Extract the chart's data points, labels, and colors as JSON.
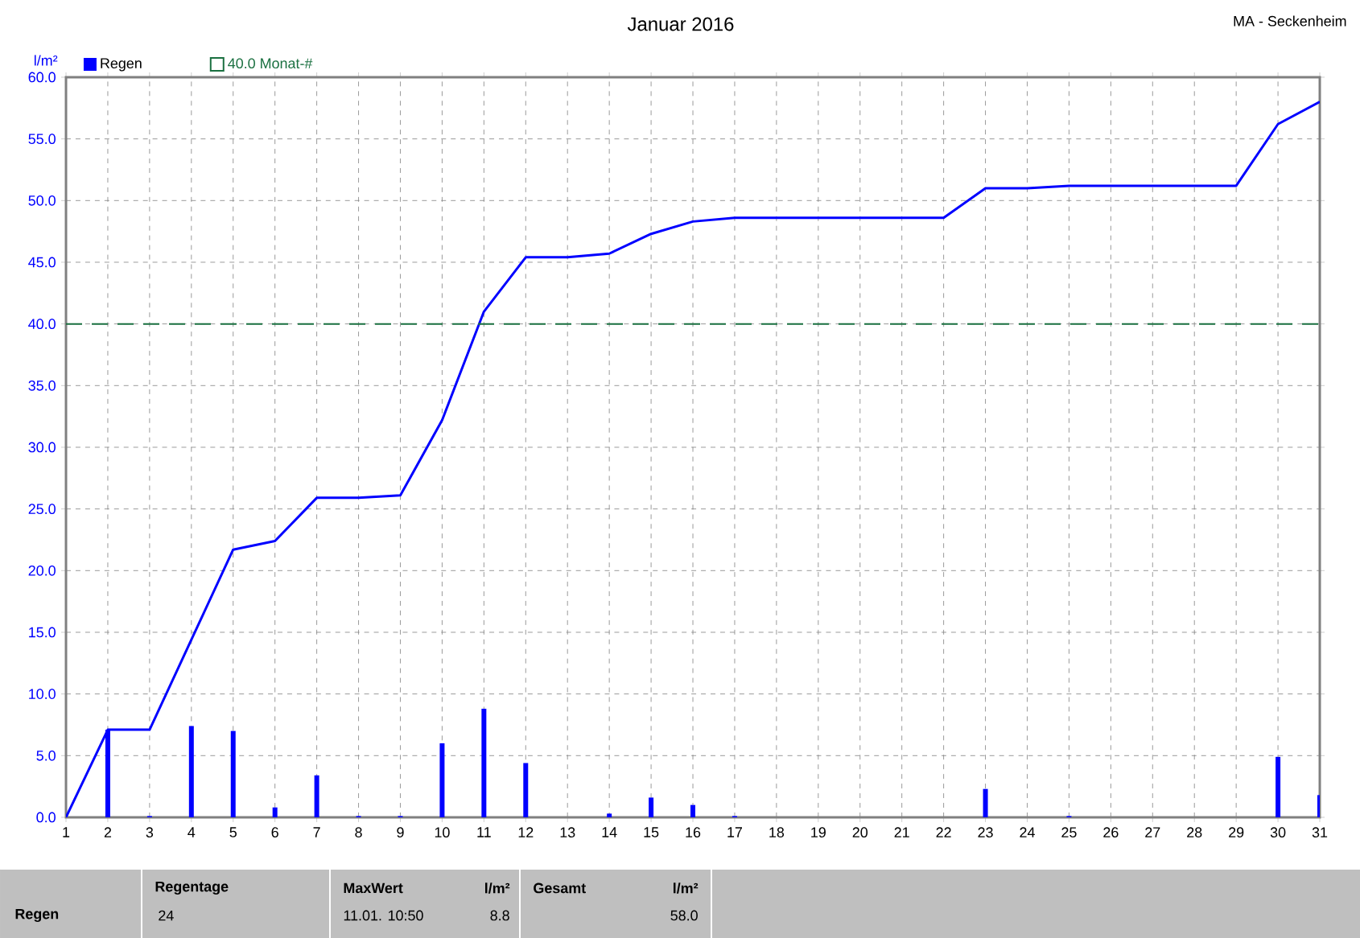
{
  "chart_data": {
    "type": "bar",
    "title": "Januar 2016",
    "ylabel": "l/m²",
    "series": [
      {
        "name": "Regen",
        "color": "#0000ff",
        "x": [
          2,
          3,
          4,
          5,
          6,
          7,
          8,
          9,
          10,
          11,
          12,
          14,
          15,
          16,
          17,
          23,
          25,
          30,
          31
        ],
        "values": [
          7.1,
          0.1,
          7.4,
          7.0,
          0.8,
          3.4,
          0.1,
          0.1,
          6.0,
          8.8,
          4.4,
          0.3,
          1.6,
          1.0,
          0.1,
          2.3,
          0.1,
          4.9,
          1.8
        ]
      },
      {
        "type": "line",
        "color": "#0000ff",
        "x": [
          1,
          2,
          3,
          4,
          5,
          6,
          7,
          8,
          9,
          10,
          11,
          12,
          13,
          14,
          15,
          16,
          17,
          18,
          19,
          20,
          21,
          22,
          23,
          24,
          25,
          26,
          27,
          28,
          29,
          30,
          31
        ],
        "values": [
          0.0,
          7.1,
          7.1,
          14.4,
          21.7,
          22.4,
          25.9,
          25.9,
          26.1,
          32.2,
          41.0,
          45.4,
          45.4,
          45.7,
          47.3,
          48.3,
          48.6,
          48.6,
          48.6,
          48.6,
          48.6,
          48.6,
          51.0,
          51.0,
          51.2,
          51.2,
          51.2,
          51.2,
          51.2,
          56.2,
          58.0
        ]
      }
    ],
    "xlim": [
      1,
      31
    ],
    "xticks": [
      1,
      2,
      3,
      4,
      5,
      6,
      7,
      8,
      9,
      10,
      11,
      12,
      13,
      14,
      15,
      16,
      17,
      18,
      19,
      20,
      21,
      22,
      23,
      24,
      25,
      26,
      27,
      28,
      29,
      30,
      31
    ],
    "ylim": [
      0,
      60
    ],
    "yticks": [
      {
        "value": 0,
        "label": "0.0"
      },
      {
        "value": 5,
        "label": "5.0"
      },
      {
        "value": 10,
        "label": "10.0"
      },
      {
        "value": 15,
        "label": "15.0"
      },
      {
        "value": 20,
        "label": "20.0"
      },
      {
        "value": 25,
        "label": "25.0"
      },
      {
        "value": 30,
        "label": "30.0"
      },
      {
        "value": 35,
        "label": "35.0"
      },
      {
        "value": 40,
        "label": "40.0"
      },
      {
        "value": 45,
        "label": "45.0"
      },
      {
        "value": 50,
        "label": "50.0"
      },
      {
        "value": 55,
        "label": "55.0"
      },
      {
        "value": 60,
        "label": "60.0"
      }
    ],
    "ref_lines": [
      {
        "axis": "y",
        "value": 40,
        "label": "40.0 Monat-#",
        "color": "#1a7040",
        "line_style": "dashed"
      }
    ],
    "grid": true,
    "legend": "top left",
    "annotations": [
      "MA - Seckenheim",
      "Regen",
      "Regentage",
      "24",
      "MaxWert",
      "l/m²",
      "11.01.  10:50",
      "8.8",
      "Gesamt",
      "l/m²",
      "58.0"
    ]
  }
}
